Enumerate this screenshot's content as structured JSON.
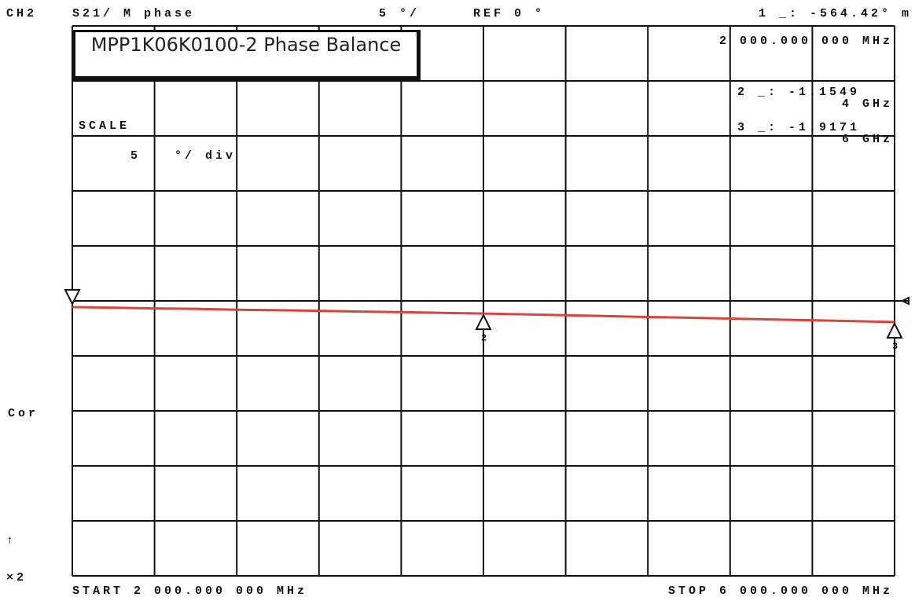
{
  "chart_data": {
    "type": "line",
    "title": "MPP1K06K0100-2 Phase Balance",
    "header": {
      "channel": "CH2",
      "parameter": "S21/ M phase",
      "scale_short": "5 °/",
      "reference": "REF 0 °",
      "marker_readout": "1 _: -564.42° m",
      "marker_frequency": "2 000.000 000 MHz"
    },
    "side": {
      "scale_label": "SCALE",
      "scale_value": "5",
      "scale_unit": "°/ div",
      "correction": "Cor",
      "arrow": "↑",
      "factor": "×2"
    },
    "start_label": "START 2 000.000 000 MHz",
    "stop_label": "STOP 6 000.000 000 MHz",
    "ref_value": 0,
    "x": [
      2000,
      2200,
      2400,
      2600,
      2800,
      3000,
      3200,
      3400,
      3600,
      3800,
      4000,
      4200,
      4400,
      4600,
      4800,
      5000,
      5200,
      5400,
      5600,
      5800,
      6000
    ],
    "series": [
      {
        "color": "#d6463f",
        "values": [
          -0.56,
          -0.62,
          -0.69,
          -0.72,
          -0.8,
          -0.85,
          -0.9,
          -0.97,
          -1.02,
          -1.09,
          -1.15,
          -1.22,
          -1.3,
          -1.38,
          -1.46,
          -1.53,
          -1.61,
          -1.69,
          -1.76,
          -1.84,
          -1.92
        ]
      }
    ],
    "markers": [
      {
        "x": 2000,
        "y": -0.56442,
        "shape": "down"
      },
      {
        "x": 4000,
        "y": -1.1549,
        "shape": "up",
        "label": "2",
        "readout": "2 _: -1.1549",
        "freq": "4 GHz"
      },
      {
        "x": 6000,
        "y": -1.9171,
        "shape": "up",
        "label": "3",
        "readout": "3 _: -1.9171",
        "freq": "6 GHz"
      }
    ],
    "xlim": [
      2000,
      6000
    ],
    "ylim": [
      -25,
      25
    ],
    "xticks": [
      2000,
      2400,
      2800,
      3200,
      3600,
      4000,
      4400,
      4800,
      5200,
      5600,
      6000
    ],
    "yticks": [
      -25,
      -20,
      -15,
      -10,
      -5,
      0,
      5,
      10,
      15,
      20,
      25
    ],
    "grid": true
  }
}
